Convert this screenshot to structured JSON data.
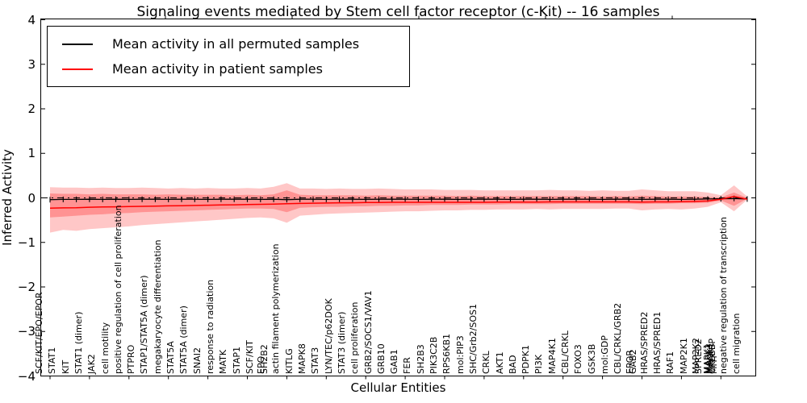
{
  "chart_data": {
    "type": "line",
    "title": "Signaling events mediated by Stem cell factor receptor (c-Kit) -- 16 samples",
    "xlabel": "Cellular Entities",
    "ylabel": "Inferred Activity",
    "ylim": [
      -4,
      4
    ],
    "yticks": [
      "4",
      "3",
      "2",
      "1",
      "0",
      "−1",
      "−2",
      "−3",
      "−4"
    ],
    "grid": false,
    "legend_position": "upper left",
    "colors": {
      "permuted": "#000000",
      "patient": "#ff0000",
      "band": "#ff0000"
    },
    "zero_line": {
      "value": 0,
      "style": "dashdot",
      "color": "#000000"
    },
    "n_slots": 54,
    "x_entities": [
      {
        "label": "SCF/KIT/EPO/EPOR",
        "slot": 0
      },
      {
        "label": "STAT1",
        "slot": 1
      },
      {
        "label": "KIT",
        "slot": 2
      },
      {
        "label": "STAT1 (dimer)",
        "slot": 3
      },
      {
        "label": "JAK2",
        "slot": 4
      },
      {
        "label": "cell motility",
        "slot": 5
      },
      {
        "label": "positive regulation of cell proliferation",
        "slot": 6
      },
      {
        "label": "PTPRO",
        "slot": 7
      },
      {
        "label": "STAP1/STAT5A (dimer)",
        "slot": 8
      },
      {
        "label": "megakaryocyte differentiation",
        "slot": 9
      },
      {
        "label": "STAT5A",
        "slot": 10
      },
      {
        "label": "STAT5A (dimer)",
        "slot": 11
      },
      {
        "label": "SNAI2",
        "slot": 12
      },
      {
        "label": "response to radiation",
        "slot": 13
      },
      {
        "label": "MATK",
        "slot": 14
      },
      {
        "label": "STAP1",
        "slot": 15
      },
      {
        "label": "SCF/KIT",
        "slot": 16
      },
      {
        "label": "EPO",
        "slot": 17,
        "dx": -2
      },
      {
        "label": "SH2B2",
        "slot": 17,
        "dx": 2
      },
      {
        "label": "actin filament polymerization",
        "slot": 18
      },
      {
        "label": "KITLG",
        "slot": 19
      },
      {
        "label": "MAPK8",
        "slot": 20
      },
      {
        "label": "STAT3",
        "slot": 21
      },
      {
        "label": "LYN/TEC/p62DOK",
        "slot": 22
      },
      {
        "label": "STAT3 (dimer)",
        "slot": 23
      },
      {
        "label": "cell proliferation",
        "slot": 24
      },
      {
        "label": "GRB2/SOCS1/VAV1",
        "slot": 25
      },
      {
        "label": "GRB10",
        "slot": 26
      },
      {
        "label": "GAB1",
        "slot": 27
      },
      {
        "label": "FER",
        "slot": 28
      },
      {
        "label": "SH2B3",
        "slot": 29
      },
      {
        "label": "PIK3C2B",
        "slot": 30
      },
      {
        "label": "RPS6KB1",
        "slot": 31
      },
      {
        "label": "mol:PIP3",
        "slot": 32
      },
      {
        "label": "SHC/Grb2/SOS1",
        "slot": 33
      },
      {
        "label": "CRKL",
        "slot": 34
      },
      {
        "label": "AKT1",
        "slot": 35
      },
      {
        "label": "BAD",
        "slot": 36
      },
      {
        "label": "PDPK1",
        "slot": 37
      },
      {
        "label": "PI3K",
        "slot": 38
      },
      {
        "label": "MAP4K1",
        "slot": 39
      },
      {
        "label": "CBL/CRKL",
        "slot": 40
      },
      {
        "label": "FOXO3",
        "slot": 41
      },
      {
        "label": "GSK3B",
        "slot": 42
      },
      {
        "label": "mol:GDP",
        "slot": 43
      },
      {
        "label": "CBL/CRKL/GRB2",
        "slot": 44
      },
      {
        "label": "EPOR",
        "slot": 45,
        "dx": -2
      },
      {
        "label": "GAB2",
        "slot": 45,
        "dx": 2
      },
      {
        "label": "HRAS/SPRED2",
        "slot": 46
      },
      {
        "label": "HRAS/SPRED1",
        "slot": 47
      },
      {
        "label": "RAF1",
        "slot": 48
      },
      {
        "label": "MAP2K1",
        "slot": 49
      },
      {
        "label": "MAP2K2",
        "slot": 50,
        "dx": -1
      },
      {
        "label": "SPRED2",
        "slot": 50,
        "dx": 2
      },
      {
        "label": "MAPK1",
        "slot": 51,
        "dx": -3
      },
      {
        "label": "MAPK3",
        "slot": 51,
        "dx": -1
      },
      {
        "label": "MKNK1",
        "slot": 51,
        "dx": 1
      },
      {
        "label": "CREBBP",
        "slot": 51,
        "dx": 3
      },
      {
        "label": "MITF",
        "slot": 51,
        "dx": 5
      },
      {
        "label": "negative regulation of transcription",
        "slot": 52
      },
      {
        "label": "cell migration",
        "slot": 53
      }
    ],
    "series": [
      {
        "name": "Mean activity in all permuted samples",
        "color": "#000000",
        "marker": "|",
        "values": [
          -0.04,
          -0.035,
          -0.035,
          -0.03,
          -0.035,
          -0.03,
          -0.035,
          -0.03,
          -0.03,
          -0.035,
          -0.03,
          -0.03,
          -0.035,
          -0.03,
          -0.03,
          -0.03,
          -0.035,
          -0.03,
          -0.04,
          -0.03,
          -0.03,
          -0.035,
          -0.03,
          -0.03,
          -0.035,
          -0.03,
          -0.03,
          -0.03,
          -0.035,
          -0.03,
          -0.03,
          -0.035,
          -0.03,
          -0.03,
          -0.03,
          -0.035,
          -0.03,
          -0.03,
          -0.035,
          -0.03,
          -0.03,
          -0.03,
          -0.035,
          -0.03,
          -0.03,
          -0.035,
          -0.03,
          -0.03,
          -0.035,
          -0.03,
          -0.025,
          -0.02,
          -0.015,
          -0.025
        ]
      },
      {
        "name": "Mean activity in patient samples",
        "color": "#ff0000",
        "marker": "none",
        "values": [
          -0.23,
          -0.225,
          -0.22,
          -0.21,
          -0.205,
          -0.2,
          -0.195,
          -0.19,
          -0.185,
          -0.18,
          -0.175,
          -0.17,
          -0.165,
          -0.16,
          -0.155,
          -0.15,
          -0.145,
          -0.14,
          -0.13,
          -0.125,
          -0.12,
          -0.115,
          -0.11,
          -0.11,
          -0.105,
          -0.105,
          -0.1,
          -0.1,
          -0.1,
          -0.1,
          -0.1,
          -0.1,
          -0.1,
          -0.1,
          -0.095,
          -0.095,
          -0.095,
          -0.095,
          -0.09,
          -0.09,
          -0.09,
          -0.09,
          -0.09,
          -0.09,
          -0.09,
          -0.095,
          -0.09,
          -0.09,
          -0.085,
          -0.08,
          -0.07,
          -0.03,
          0.03,
          -0.03
        ]
      }
    ],
    "bands": [
      {
        "name": "outer",
        "color": "#ff0000",
        "opacity": 0.22,
        "upper": [
          0.24,
          0.23,
          0.23,
          0.22,
          0.23,
          0.22,
          0.22,
          0.23,
          0.22,
          0.21,
          0.22,
          0.21,
          0.22,
          0.21,
          0.21,
          0.22,
          0.21,
          0.25,
          0.33,
          0.21,
          0.21,
          0.2,
          0.21,
          0.2,
          0.2,
          0.21,
          0.2,
          0.19,
          0.19,
          0.19,
          0.18,
          0.18,
          0.18,
          0.17,
          0.17,
          0.17,
          0.17,
          0.17,
          0.18,
          0.17,
          0.17,
          0.16,
          0.17,
          0.16,
          0.16,
          0.19,
          0.17,
          0.15,
          0.15,
          0.15,
          0.12,
          0.06,
          0.28,
          0.03
        ],
        "lower": [
          -0.78,
          -0.72,
          -0.74,
          -0.7,
          -0.68,
          -0.66,
          -0.64,
          -0.61,
          -0.59,
          -0.57,
          -0.55,
          -0.53,
          -0.51,
          -0.49,
          -0.47,
          -0.45,
          -0.44,
          -0.46,
          -0.56,
          -0.4,
          -0.38,
          -0.36,
          -0.35,
          -0.34,
          -0.33,
          -0.32,
          -0.31,
          -0.3,
          -0.3,
          -0.29,
          -0.28,
          -0.28,
          -0.27,
          -0.27,
          -0.26,
          -0.26,
          -0.26,
          -0.25,
          -0.26,
          -0.25,
          -0.25,
          -0.25,
          -0.25,
          -0.24,
          -0.24,
          -0.28,
          -0.26,
          -0.25,
          -0.26,
          -0.24,
          -0.2,
          -0.1,
          -0.3,
          -0.04
        ]
      },
      {
        "name": "inner",
        "color": "#ff0000",
        "opacity": 0.26,
        "upper": [
          0.1,
          0.09,
          0.09,
          0.08,
          0.09,
          0.08,
          0.08,
          0.08,
          0.07,
          0.08,
          0.07,
          0.07,
          0.07,
          0.07,
          0.06,
          0.07,
          0.06,
          0.08,
          0.17,
          0.07,
          0.06,
          0.06,
          0.06,
          0.06,
          0.05,
          0.06,
          0.05,
          0.05,
          0.05,
          0.05,
          0.05,
          0.04,
          0.05,
          0.04,
          0.04,
          0.04,
          0.04,
          0.04,
          0.04,
          0.04,
          0.04,
          0.04,
          0.03,
          0.04,
          0.03,
          0.05,
          0.04,
          0.03,
          0.03,
          0.03,
          0.02,
          0.01,
          0.12,
          0.0
        ],
        "lower": [
          -0.44,
          -0.42,
          -0.4,
          -0.38,
          -0.37,
          -0.35,
          -0.34,
          -0.32,
          -0.31,
          -0.3,
          -0.29,
          -0.28,
          -0.27,
          -0.26,
          -0.25,
          -0.24,
          -0.24,
          -0.25,
          -0.32,
          -0.22,
          -0.21,
          -0.2,
          -0.2,
          -0.19,
          -0.19,
          -0.18,
          -0.18,
          -0.17,
          -0.17,
          -0.16,
          -0.16,
          -0.16,
          -0.15,
          -0.15,
          -0.15,
          -0.14,
          -0.14,
          -0.14,
          -0.14,
          -0.13,
          -0.13,
          -0.13,
          -0.13,
          -0.13,
          -0.13,
          -0.14,
          -0.13,
          -0.13,
          -0.12,
          -0.12,
          -0.11,
          -0.06,
          -0.18,
          -0.02
        ]
      }
    ]
  }
}
